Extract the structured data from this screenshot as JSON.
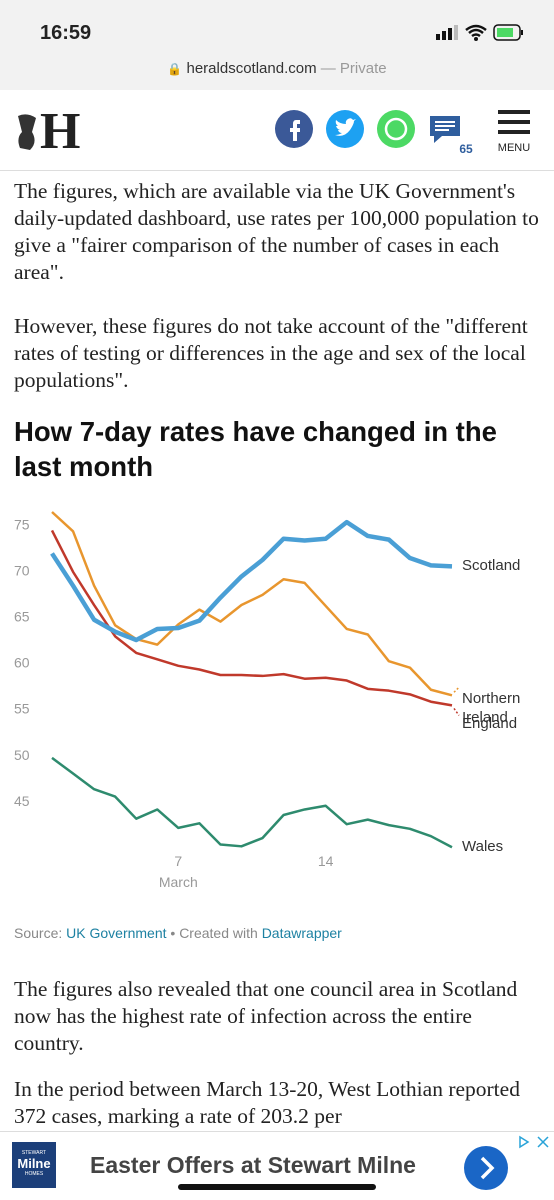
{
  "status_bar": {
    "time": "16:59"
  },
  "address_bar": {
    "domain": "heraldscotland.com",
    "mode": "— Private"
  },
  "header": {
    "logo": "H",
    "comment_count": "65",
    "menu": "MENU"
  },
  "article": {
    "paragraphs_before": [
      "The figures, which are available via the UK Government's daily-updated dashboard, use rates per 100,000 population to give a \"fairer comparison of the number of cases in each area\".",
      "However, these figures do not take account of the \"different rates of testing or differences in the age and sex of the local populations\"."
    ],
    "paragraphs_after": [
      "The figures also revealed that one council area in Scotland now has the highest rate of infection across the entire country.",
      "In the period between March 13-20, West Lothian reported 372 cases, marking a rate of 203.2 per"
    ]
  },
  "chart_data": {
    "type": "line",
    "title": "How 7-day rates have changed in the last month",
    "x": [
      1,
      2,
      3,
      4,
      5,
      6,
      7,
      8,
      9,
      10,
      11,
      12,
      13,
      14,
      15,
      16,
      17,
      18,
      19,
      20
    ],
    "xlim": [
      1,
      20
    ],
    "xticks": [
      7,
      14
    ],
    "x_axis_label": "March",
    "ylim": [
      39.8,
      76.5
    ],
    "yticks": [
      45,
      50,
      55,
      60,
      65,
      70,
      75
    ],
    "grid": false,
    "series": [
      {
        "name": "Wales",
        "color": "#2e8b6e",
        "values": [
          49.8,
          48.1,
          46.4,
          45.6,
          43.2,
          44.2,
          42.2,
          42.7,
          40.4,
          40.2,
          41.1,
          43.6,
          44.2,
          44.6,
          42.6,
          43.1,
          42.5,
          42.1,
          41.3,
          40.1
        ]
      },
      {
        "name": "England",
        "color": "#c0392b",
        "values": [
          74.5,
          70,
          66.4,
          63,
          61.2,
          60.5,
          59.8,
          59.4,
          58.8,
          58.8,
          58.7,
          58.9,
          58.4,
          58.5,
          58.2,
          57.3,
          57.1,
          56.7,
          55.9,
          55.5
        ]
      },
      {
        "name": "Northern Ireland",
        "color": "#e8962e",
        "values": [
          76.5,
          74.4,
          68.5,
          64.2,
          62.7,
          62.1,
          64.3,
          65.9,
          64.6,
          66.4,
          67.5,
          69.2,
          68.8,
          66.3,
          63.8,
          63.2,
          60.3,
          59.6,
          57.2,
          56.6
        ]
      },
      {
        "name": "Scotland",
        "color": "#4a9fd5",
        "values": [
          72,
          68.5,
          64.8,
          63.5,
          62.6,
          63.8,
          63.9,
          64.7,
          67.2,
          69.5,
          71.3,
          73.6,
          73.4,
          73.6,
          75.4,
          73.9,
          73.5,
          71.5,
          70.7,
          70.6
        ]
      }
    ],
    "source": {
      "prefix": "Source: ",
      "name": "UK Government",
      "middle": " • Created with ",
      "tool": "Datawrapper"
    }
  },
  "ad": {
    "brand_top": "STEWART",
    "brand": "Milne",
    "brand_bottom": "HOMES",
    "text": "Easter Offers at Stewart Milne"
  }
}
